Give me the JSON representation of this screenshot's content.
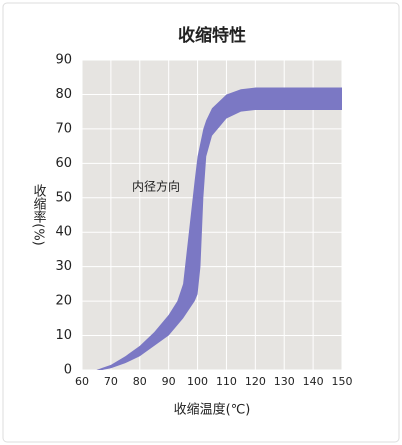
{
  "chart_data": {
    "type": "band",
    "title": "收缩特性",
    "x_label": "收缩温度(℃)",
    "y_label": "收缩率(%)",
    "annotation": "内径方向",
    "x": [
      65,
      67,
      70,
      75,
      80,
      85,
      90,
      93,
      95,
      97,
      99,
      100,
      101,
      102,
      103,
      105,
      110,
      115,
      120,
      150
    ],
    "series": [
      {
        "values": [
          0,
          0.6,
          1.5,
          4,
          7,
          11,
          16,
          20,
          25,
          40,
          55,
          62,
          66,
          70,
          72.5,
          76,
          80,
          81.5,
          82,
          82
        ]
      },
      {
        "values": [
          0,
          0,
          0.5,
          2,
          4,
          7,
          10,
          13,
          15,
          17.5,
          20,
          22,
          30,
          50,
          62,
          68,
          73,
          75,
          75.5,
          75.5
        ]
      }
    ],
    "color": "#7b78c4",
    "xlim": [
      60,
      150
    ],
    "xticks": [
      60,
      70,
      80,
      90,
      100,
      110,
      120,
      130,
      140,
      150
    ],
    "ylim": [
      0,
      90
    ],
    "yticks": [
      0,
      10,
      20,
      30,
      40,
      50,
      60,
      70,
      80,
      90
    ],
    "grid": true
  }
}
